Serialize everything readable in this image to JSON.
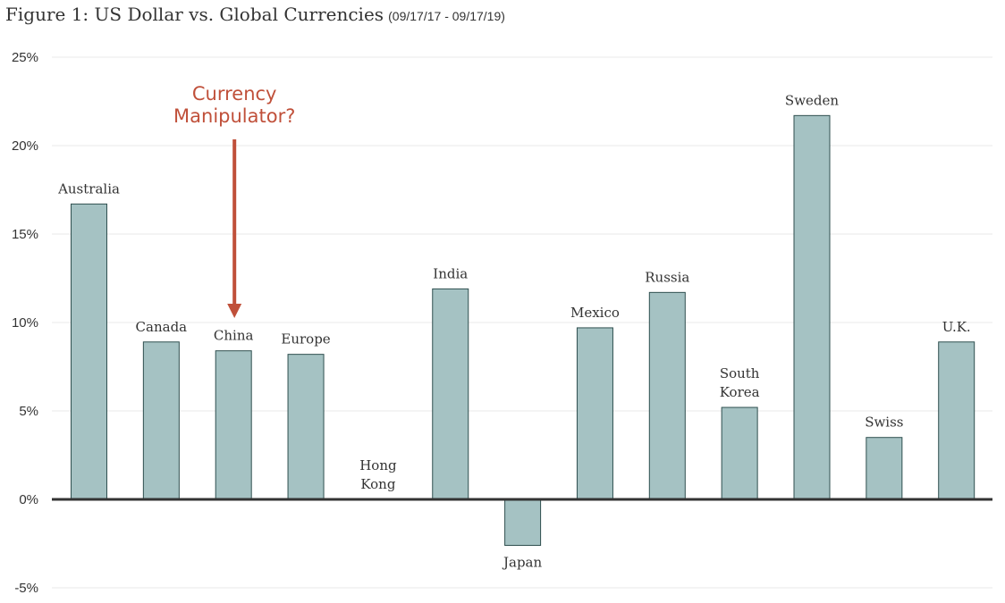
{
  "title": {
    "main": "Figure 1: US Dollar vs. Global Currencies",
    "range": "(09/17/17 - 09/17/19)"
  },
  "colors": {
    "bar_fill": "#a5c2c3",
    "bar_stroke": "#2f4f4f",
    "annotation": "#c0503a",
    "axis": "#333333",
    "grid": "#e8e8e8"
  },
  "annotation": {
    "lines": [
      "Currency",
      "Manipulator?"
    ],
    "target_category": "China"
  },
  "chart_data": {
    "type": "bar",
    "categories": [
      "Australia",
      "Canada",
      "China",
      "Europe",
      "Hong Kong",
      "India",
      "Japan",
      "Mexico",
      "Russia",
      "South Korea",
      "Sweden",
      "Swiss",
      "U.K."
    ],
    "category_label_lines": [
      [
        "Australia"
      ],
      [
        "Canada"
      ],
      [
        "China"
      ],
      [
        "Europe"
      ],
      [
        "Hong",
        "Kong"
      ],
      [
        "India"
      ],
      [
        "Japan"
      ],
      [
        "Mexico"
      ],
      [
        "Russia"
      ],
      [
        "South",
        "Korea"
      ],
      [
        "Sweden"
      ],
      [
        "Swiss"
      ],
      [
        "U.K."
      ]
    ],
    "values": [
      16.7,
      8.9,
      8.4,
      8.2,
      0.0,
      11.9,
      -2.6,
      9.7,
      11.7,
      5.2,
      21.7,
      3.5,
      8.9
    ],
    "yticks": [
      25,
      20,
      15,
      10,
      5,
      0,
      -5
    ],
    "ytick_labels": [
      "25%",
      "20%",
      "15%",
      "10%",
      "5%",
      "0%",
      "-5%"
    ],
    "ylim": [
      -5,
      25
    ],
    "xlabel": "",
    "ylabel": "",
    "grid": true
  }
}
